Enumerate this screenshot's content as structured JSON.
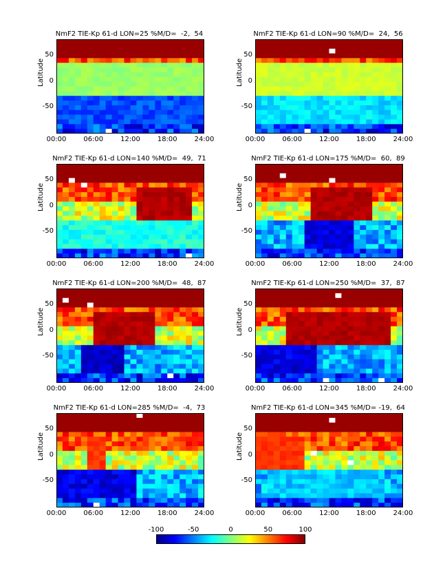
{
  "chart_data": [
    {
      "type": "heatmap",
      "title": "NmF2 TIE-Kp 61-d LON=25 %M/D=  -2,  54",
      "ylabel": "Latitude",
      "xlim": [
        "00:00",
        "24:00"
      ],
      "ylim": [
        -90,
        90
      ],
      "x_ticks": [
        "00:00",
        "06:00",
        "12:00",
        "18:00",
        "24:00"
      ],
      "y_ticks": [
        "50",
        "0",
        "-50"
      ]
    },
    {
      "type": "heatmap",
      "title": "NmF2 TIE-Kp 61-d LON=90 %M/D=  24,  56",
      "ylabel": "Latitude",
      "xlim": [
        "00:00",
        "24:00"
      ],
      "ylim": [
        -90,
        90
      ],
      "x_ticks": [
        "00:00",
        "06:00",
        "12:00",
        "18:00",
        "24:00"
      ],
      "y_ticks": [
        "50",
        "0",
        "-50"
      ]
    },
    {
      "type": "heatmap",
      "title": "NmF2 TIE-Kp 61-d LON=140 %M/D=  49,  71",
      "ylabel": "Latitude",
      "xlim": [
        "00:00",
        "24:00"
      ],
      "ylim": [
        -90,
        90
      ],
      "x_ticks": [
        "00:00",
        "06:00",
        "12:00",
        "18:00",
        "24:00"
      ],
      "y_ticks": [
        "50",
        "0",
        "-50"
      ]
    },
    {
      "type": "heatmap",
      "title": "NmF2 TIE-Kp 61-d LON=175 %M/D=  60,  89",
      "ylabel": "Latitude",
      "xlim": [
        "00:00",
        "24:00"
      ],
      "ylim": [
        -90,
        90
      ],
      "x_ticks": [
        "00:00",
        "06:00",
        "12:00",
        "18:00",
        "24:00"
      ],
      "y_ticks": [
        "50",
        "0",
        "-50"
      ]
    },
    {
      "type": "heatmap",
      "title": "NmF2 TIE-Kp 61-d LON=200 %M/D=  48,  87",
      "ylabel": "Latitude",
      "xlim": [
        "00:00",
        "24:00"
      ],
      "ylim": [
        -90,
        90
      ],
      "x_ticks": [
        "00:00",
        "06:00",
        "12:00",
        "18:00",
        "24:00"
      ],
      "y_ticks": [
        "50",
        "0",
        "-50"
      ]
    },
    {
      "type": "heatmap",
      "title": "NmF2 TIE-Kp 61-d LON=250 %M/D=  37,  87",
      "ylabel": "Latitude",
      "xlim": [
        "00:00",
        "24:00"
      ],
      "ylim": [
        -90,
        90
      ],
      "x_ticks": [
        "00:00",
        "06:00",
        "12:00",
        "18:00",
        "24:00"
      ],
      "y_ticks": [
        "50",
        "0",
        "-50"
      ]
    },
    {
      "type": "heatmap",
      "title": "NmF2 TIE-Kp 61-d LON=285 %M/D=  -4,  73",
      "ylabel": "Latitude",
      "xlim": [
        "00:00",
        "24:00"
      ],
      "ylim": [
        -90,
        90
      ],
      "x_ticks": [
        "00:00",
        "06:00",
        "12:00",
        "18:00",
        "24:00"
      ],
      "y_ticks": [
        "50",
        "0",
        "-50"
      ]
    },
    {
      "type": "heatmap",
      "title": "NmF2 TIE-Kp 61-d LON=345 %M/D= -19,  64",
      "ylabel": "Latitude",
      "xlim": [
        "00:00",
        "24:00"
      ],
      "ylim": [
        -90,
        90
      ],
      "x_ticks": [
        "00:00",
        "06:00",
        "12:00",
        "18:00",
        "24:00"
      ],
      "y_ticks": [
        "50",
        "0",
        "-50"
      ]
    }
  ],
  "colorbar": {
    "ticks": [
      "-100",
      "-50",
      "0",
      "50",
      "100"
    ],
    "range": [
      -100,
      100
    ],
    "colormap": "jet"
  }
}
